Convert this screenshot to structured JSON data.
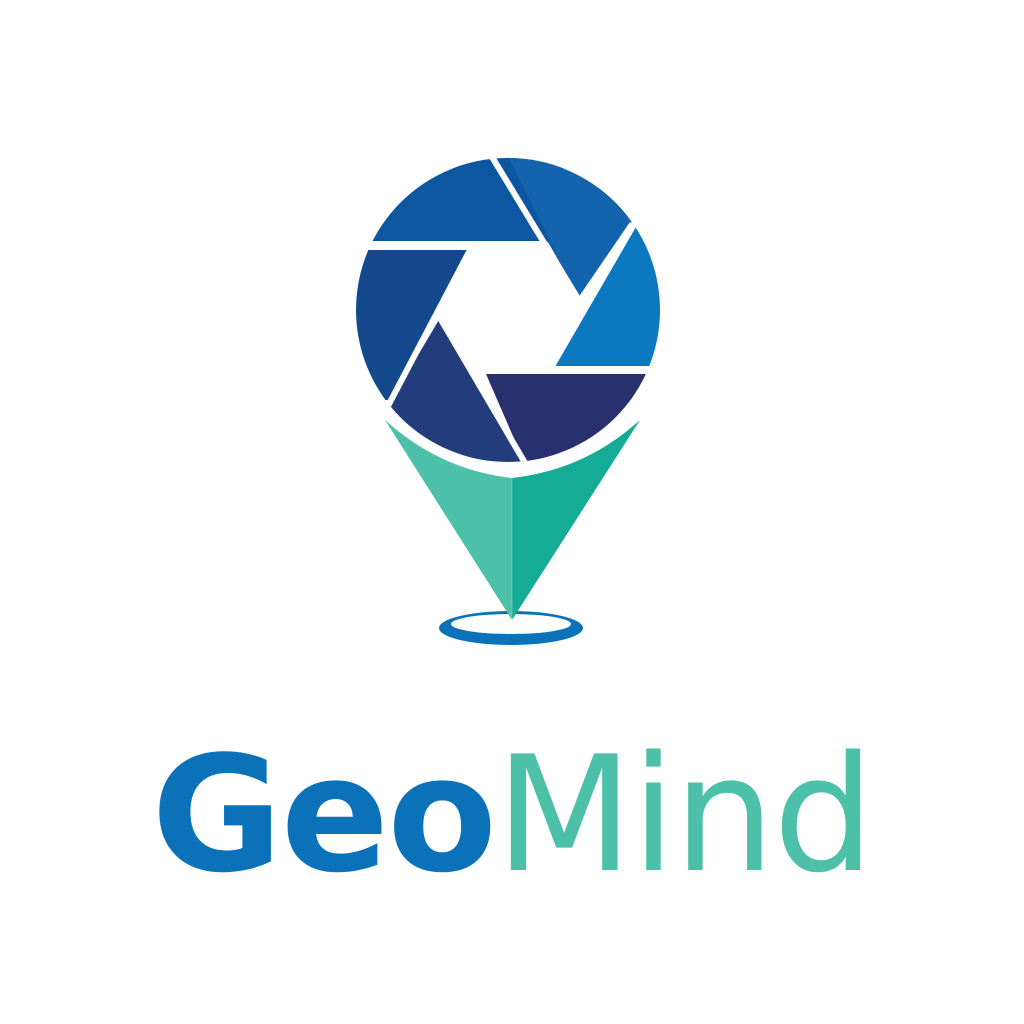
{
  "logo": {
    "wordmark": {
      "part1": "Geo",
      "part2": "Mind"
    },
    "icon": "location-pin-camera-aperture-icon",
    "colors": {
      "background": "#ffffff",
      "geo_text": "#0b71b9",
      "mind_text": "#4cc0a8",
      "pin_left": "#4cc0a8",
      "pin_right": "#14ac94",
      "ring": "#0b71b9",
      "aperture_blades": [
        "#1463ad",
        "#0b78bf",
        "#29306e",
        "#233d7c",
        "#14498d",
        "#0d56a0"
      ]
    }
  }
}
